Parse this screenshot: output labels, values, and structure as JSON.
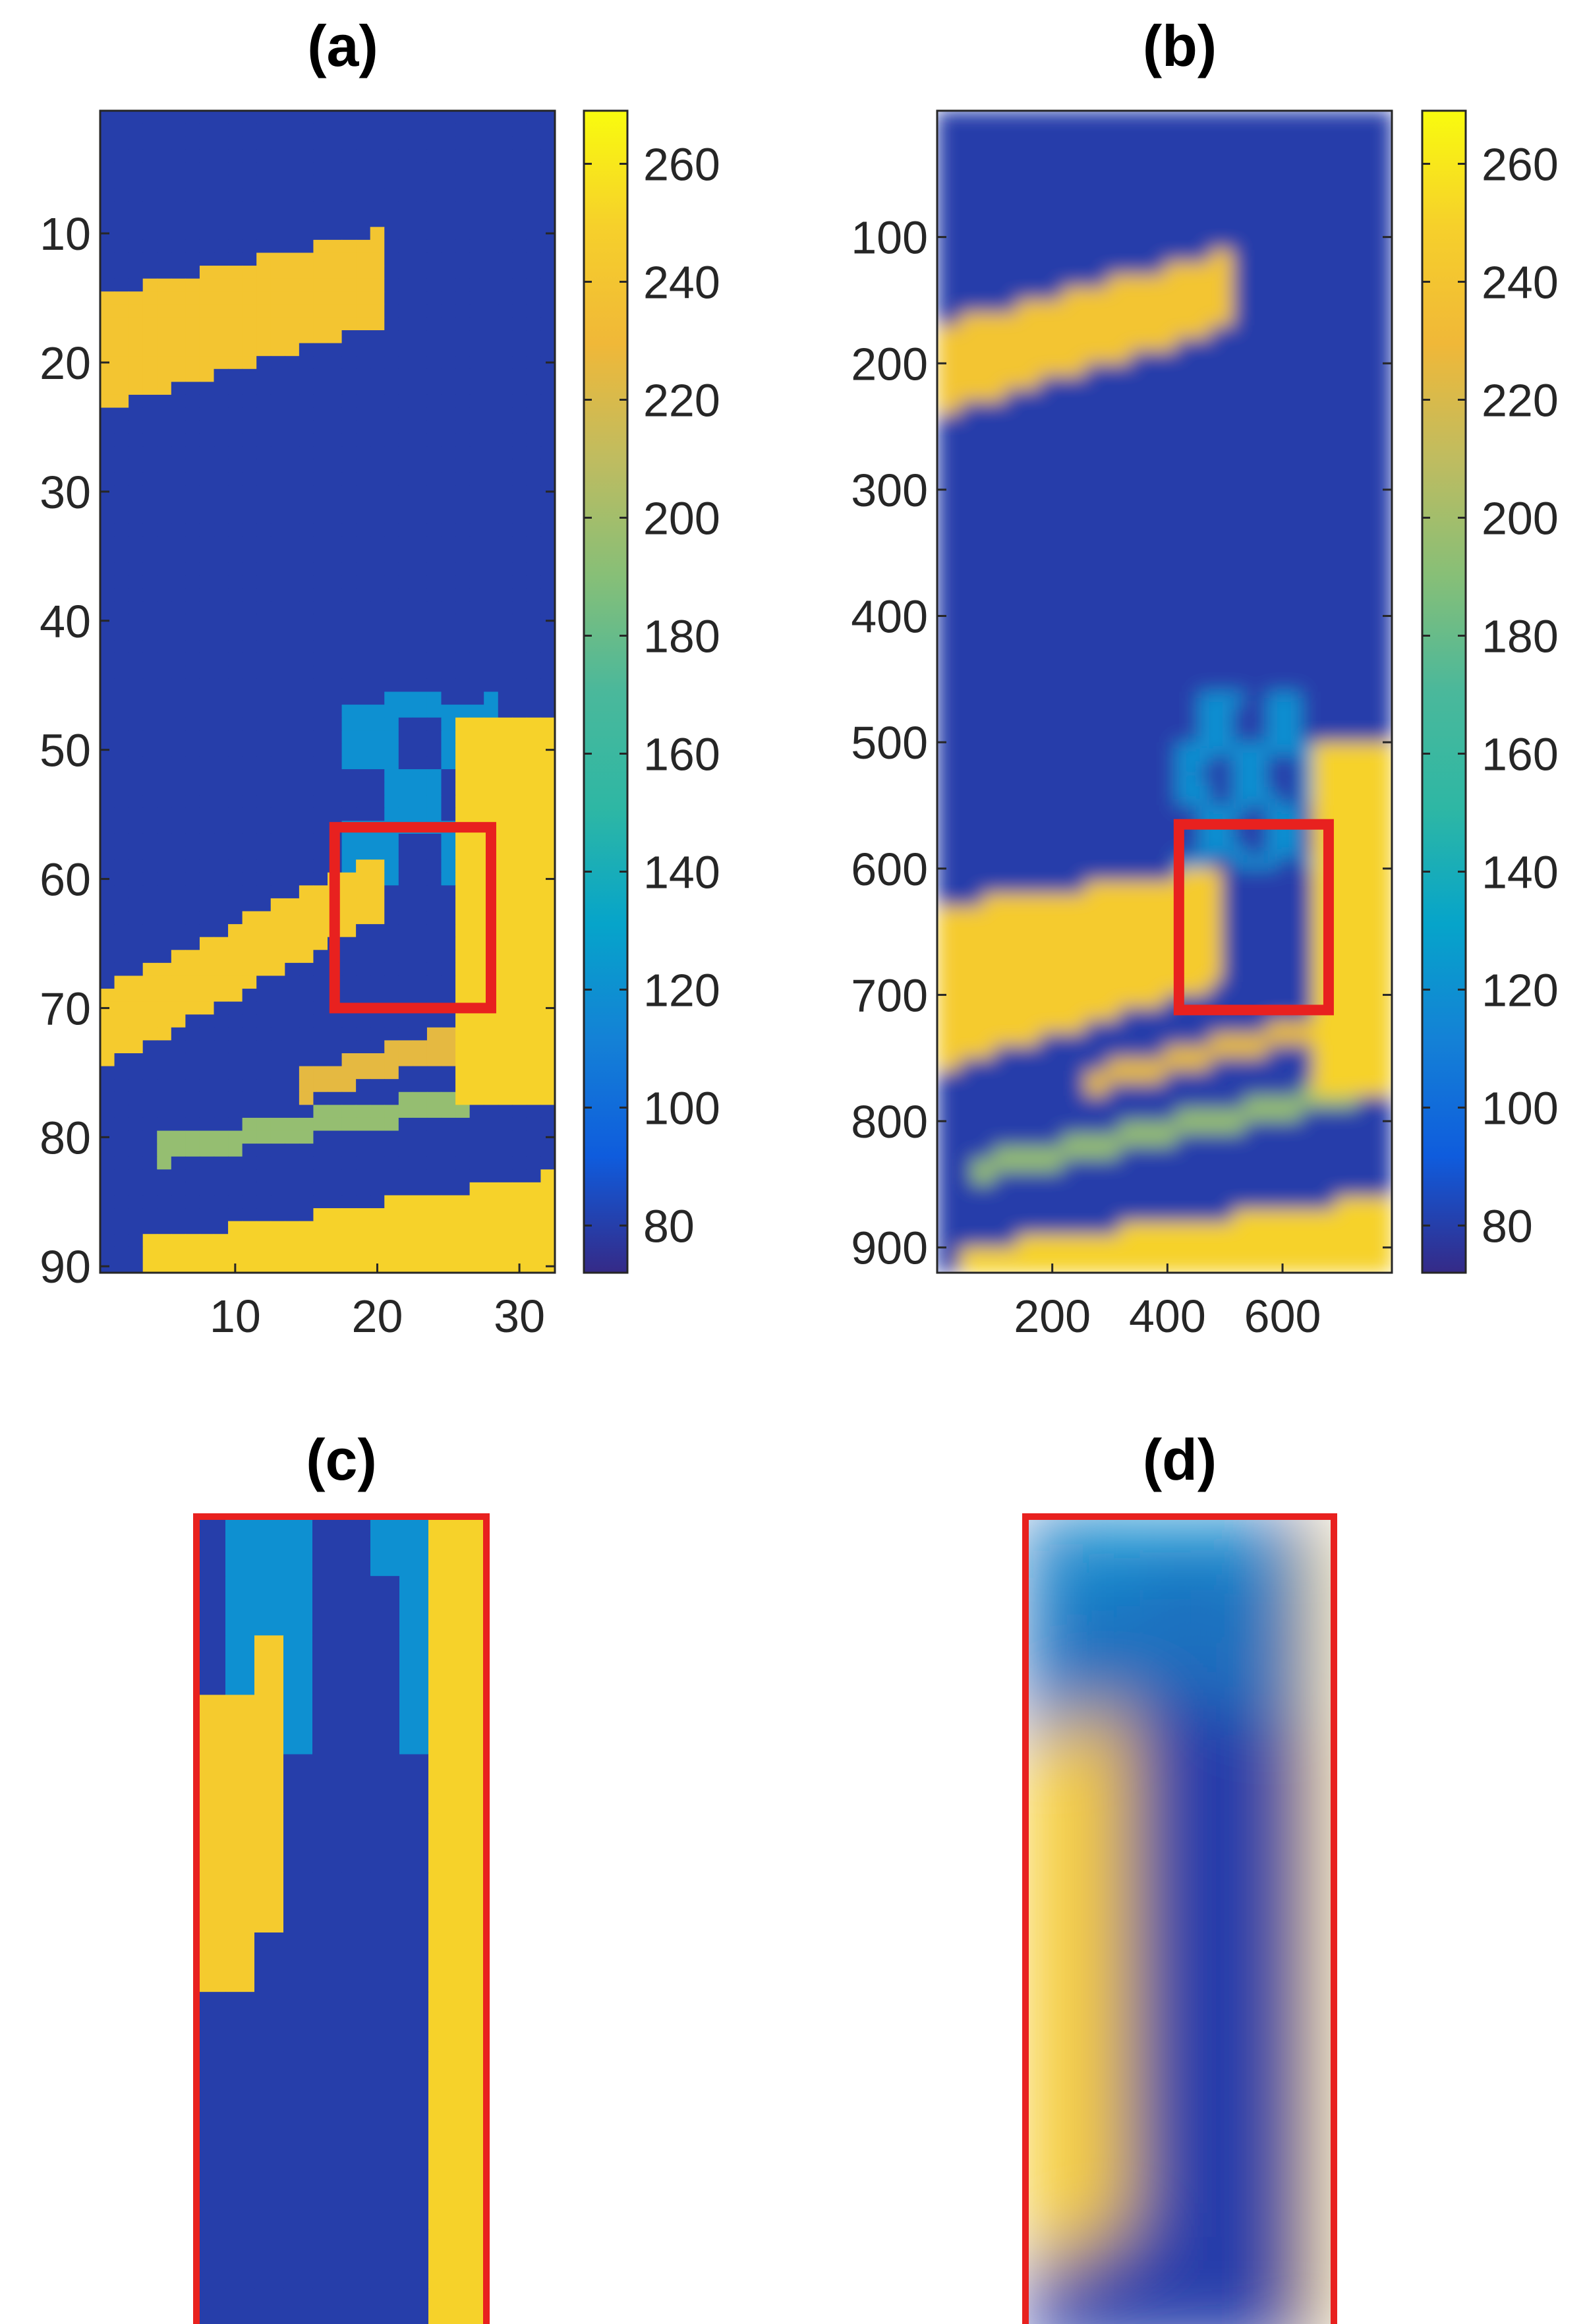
{
  "figure": {
    "panel_titles": [
      "(a)",
      "(b)",
      "(c)",
      "(d)"
    ],
    "highlight_color": "#e8211f",
    "colormap": "parula"
  },
  "chart_data": [
    {
      "panel": "(a)",
      "type": "heatmap",
      "title": "(a)",
      "xlabel": "",
      "ylabel": "",
      "xlim": [
        0.5,
        32.5
      ],
      "ylim": [
        0.5,
        90.5
      ],
      "y_direction": "reversed",
      "xticks": [
        10,
        20,
        30
      ],
      "yticks": [
        10,
        20,
        30,
        40,
        50,
        60,
        70,
        80,
        90
      ],
      "grid": false,
      "colorbar": {
        "ticks": [
          80,
          100,
          120,
          140,
          160,
          180,
          200,
          220,
          240,
          260
        ],
        "clim": [
          72,
          269
        ]
      },
      "highlight_box": {
        "x": [
          17,
          28
        ],
        "y": [
          56,
          70
        ],
        "color": "#e8211f"
      },
      "features": [
        {
          "shape": "band",
          "x": [
            0,
            20
          ],
          "y_top": [
            15,
            10
          ],
          "y_bot": [
            24,
            17
          ],
          "value": 240
        },
        {
          "shape": "band",
          "x": [
            0,
            20
          ],
          "y_top": [
            69,
            58
          ],
          "y_bot": [
            75,
            63
          ],
          "value": 245
        },
        {
          "shape": "region",
          "x": [
            26,
            32
          ],
          "y": [
            48,
            77
          ],
          "value": 250
        },
        {
          "shape": "band",
          "x": [
            15,
            32
          ],
          "y_top": [
            75,
            69
          ],
          "y_bot": [
            77,
            72
          ],
          "value": 225
        },
        {
          "shape": "band",
          "x": [
            5,
            32
          ],
          "y_top": [
            80,
            75
          ],
          "y_bot": [
            82,
            77
          ],
          "value": 195
        },
        {
          "shape": "band",
          "x": [
            4,
            32
          ],
          "y_top": [
            88,
            83
          ],
          "y_bot": [
            91,
            91
          ],
          "value": 250
        },
        {
          "shape": "patch",
          "x": [
            18,
            28
          ],
          "y": [
            46,
            60
          ],
          "value": 120
        }
      ]
    },
    {
      "panel": "(b)",
      "type": "heatmap",
      "title": "(b)",
      "xlabel": "",
      "ylabel": "",
      "xlim": [
        0,
        790
      ],
      "ylim": [
        0,
        920
      ],
      "y_direction": "reversed",
      "xticks": [
        200,
        400,
        600
      ],
      "yticks": [
        100,
        200,
        300,
        400,
        500,
        600,
        700,
        800,
        900
      ],
      "grid": false,
      "colorbar": {
        "ticks": [
          80,
          100,
          120,
          140,
          160,
          180,
          200,
          220,
          240,
          260
        ],
        "clim": [
          72,
          269
        ]
      },
      "highlight_box": {
        "x": [
          420,
          680
        ],
        "y": [
          565,
          712
        ],
        "color": "#e8211f"
      },
      "features": [
        {
          "shape": "band",
          "x": [
            0,
            520
          ],
          "y_top": [
            170,
            110
          ],
          "y_bot": [
            240,
            170
          ],
          "value": 240
        },
        {
          "shape": "band",
          "x": [
            0,
            500
          ],
          "y_top": [
            630,
            600
          ],
          "y_bot": [
            760,
            690
          ],
          "value": 245
        },
        {
          "shape": "region",
          "x": [
            660,
            790
          ],
          "y": [
            500,
            780
          ],
          "value": 250
        },
        {
          "shape": "band",
          "x": [
            260,
            790
          ],
          "y_top": [
            760,
            700
          ],
          "y_bot": [
            780,
            720
          ],
          "value": 225
        },
        {
          "shape": "band",
          "x": [
            50,
            790
          ],
          "y_top": [
            830,
            760
          ],
          "y_bot": [
            850,
            780
          ],
          "value": 195
        },
        {
          "shape": "band",
          "x": [
            40,
            790
          ],
          "y_top": [
            900,
            860
          ],
          "y_bot": [
            925,
            925
          ],
          "value": 250
        },
        {
          "shape": "patch",
          "x": [
            420,
            700
          ],
          "y": [
            460,
            600
          ],
          "value": 120
        }
      ]
    },
    {
      "panel": "(c)",
      "type": "heatmap",
      "title": "(c)",
      "description_of": "zoom of red box in (a), pixelated",
      "grid": false,
      "rows": 10,
      "cols": 7
    },
    {
      "panel": "(d)",
      "type": "heatmap",
      "title": "(d)",
      "description_of": "zoom of red box in (b), interpolated",
      "grid": false
    }
  ]
}
